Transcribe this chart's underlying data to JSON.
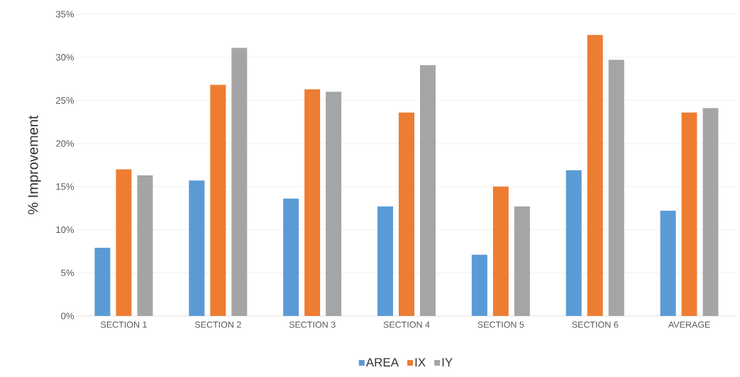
{
  "chart_data": {
    "type": "bar",
    "ylabel": "% Improvement",
    "categories": [
      "SECTION 1",
      "SECTION 2",
      "SECTION 3",
      "SECTION 4",
      "SECTION 5",
      "SECTION 6",
      "AVERAGE"
    ],
    "series": [
      {
        "name": "AREA",
        "color": "#5b9bd5",
        "values": [
          7.9,
          15.7,
          13.6,
          12.7,
          7.1,
          16.9,
          12.2
        ]
      },
      {
        "name": "IX",
        "color": "#ed7d31",
        "values": [
          17.0,
          26.8,
          26.3,
          23.6,
          15.0,
          32.6,
          23.6
        ]
      },
      {
        "name": "IY",
        "color": "#a5a5a5",
        "values": [
          16.3,
          31.1,
          26.0,
          29.1,
          12.7,
          29.7,
          24.1
        ]
      }
    ],
    "ylim": [
      0,
      35
    ],
    "yticks": [
      {
        "value": 0,
        "label": "0%"
      },
      {
        "value": 5,
        "label": "5%"
      },
      {
        "value": 10,
        "label": "10%"
      },
      {
        "value": 15,
        "label": "15%"
      },
      {
        "value": 20,
        "label": "20%"
      },
      {
        "value": 25,
        "label": "25%"
      },
      {
        "value": 30,
        "label": "30%"
      },
      {
        "value": 35,
        "label": "35%"
      }
    ],
    "grid": "y",
    "legend": "bottom"
  }
}
